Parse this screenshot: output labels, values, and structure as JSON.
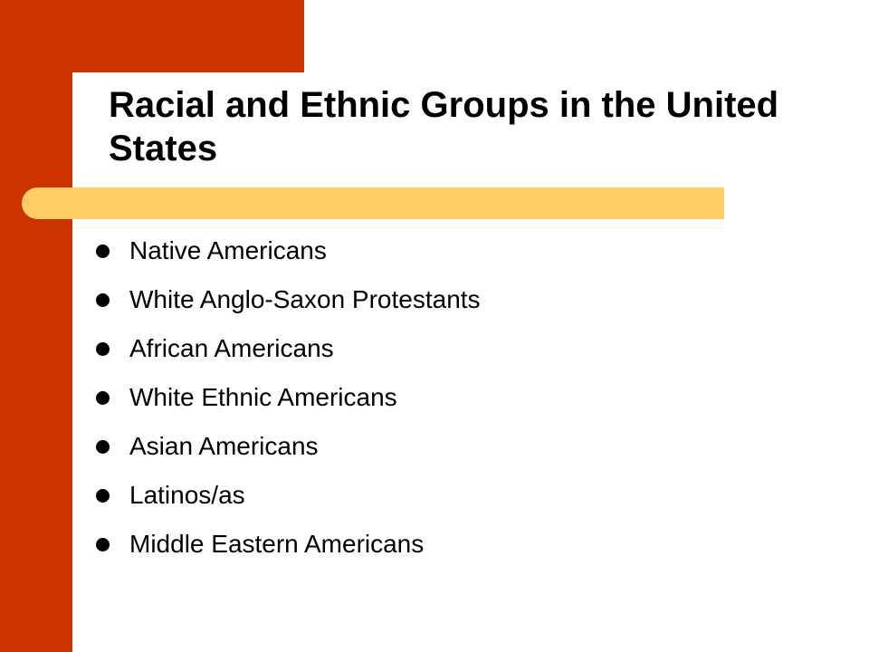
{
  "slide": {
    "title": "Racial and Ethnic Groups in the United States",
    "bullets": [
      "Native Americans",
      "White Anglo-Saxon Protestants",
      "African Americans",
      "White Ethnic Americans",
      "Asian Americans",
      "Latinos/as",
      "Middle Eastern Americans"
    ]
  },
  "colors": {
    "accent_primary": "#cc3300",
    "accent_secondary": "#ffcc66",
    "background": "#ffffff",
    "text": "#000000"
  },
  "icons": {
    "bullet": "filled-circle"
  }
}
